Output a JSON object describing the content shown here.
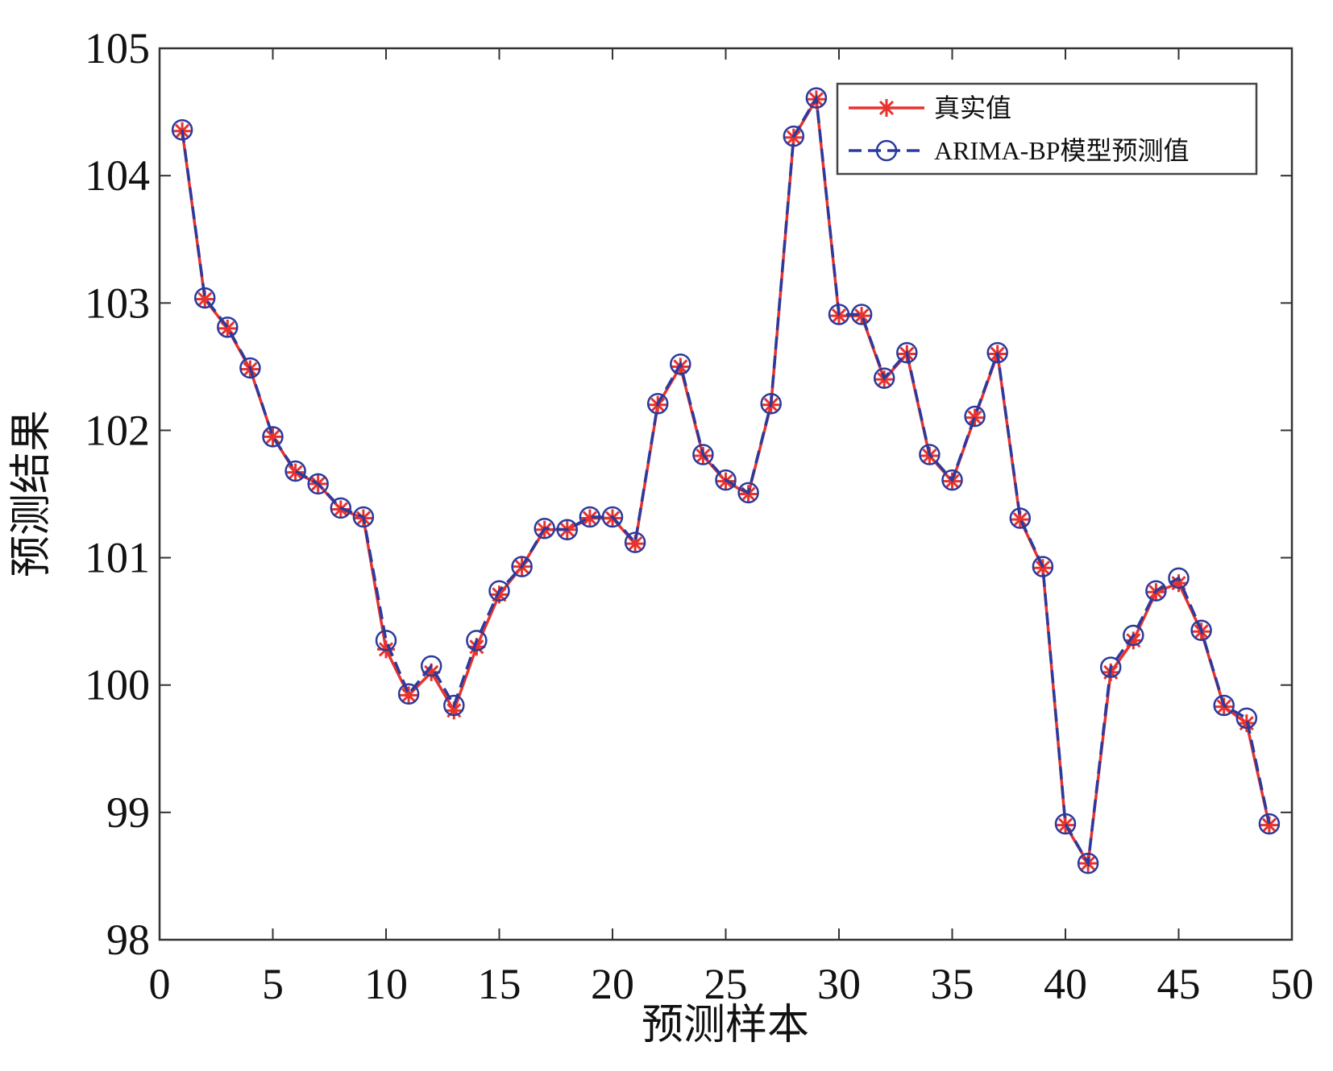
{
  "chart_data": {
    "type": "line",
    "xlabel": "预测样本",
    "ylabel": "预测结果",
    "x": [
      1,
      2,
      3,
      4,
      5,
      6,
      7,
      8,
      9,
      10,
      11,
      12,
      13,
      14,
      15,
      16,
      17,
      18,
      19,
      20,
      21,
      22,
      23,
      24,
      25,
      26,
      27,
      28,
      29,
      30,
      31,
      32,
      33,
      34,
      35,
      36,
      37,
      38,
      39,
      40,
      41,
      42,
      43,
      44,
      45,
      46,
      47,
      48,
      49
    ],
    "series": [
      {
        "name": "真实值",
        "color": "#e8322d",
        "marker": "asterisk",
        "dash": false,
        "values": [
          104.35,
          103.03,
          102.8,
          102.48,
          101.95,
          101.67,
          101.58,
          101.38,
          101.31,
          100.28,
          99.92,
          100.1,
          99.8,
          100.3,
          100.71,
          100.93,
          101.22,
          101.22,
          101.31,
          101.31,
          101.11,
          102.2,
          102.5,
          101.8,
          101.6,
          101.5,
          102.2,
          104.3,
          104.6,
          102.9,
          102.9,
          102.4,
          102.6,
          101.8,
          101.6,
          102.1,
          102.6,
          101.3,
          100.92,
          98.9,
          98.6,
          100.1,
          100.35,
          100.73,
          100.8,
          100.42,
          99.83,
          99.7,
          98.9
        ]
      },
      {
        "name": "ARIMA-BP模型预测值",
        "color": "#2b3a9c",
        "marker": "circle",
        "dash": true,
        "values": [
          104.36,
          103.04,
          102.81,
          102.49,
          101.95,
          101.68,
          101.58,
          101.39,
          101.32,
          100.35,
          99.93,
          100.15,
          99.84,
          100.35,
          100.74,
          100.93,
          101.23,
          101.22,
          101.32,
          101.32,
          101.12,
          102.21,
          102.52,
          101.81,
          101.61,
          101.51,
          102.21,
          104.31,
          104.61,
          102.91,
          102.91,
          102.41,
          102.61,
          101.81,
          101.61,
          102.11,
          102.61,
          101.31,
          100.93,
          98.91,
          98.6,
          100.14,
          100.39,
          100.74,
          100.84,
          100.43,
          99.84,
          99.74,
          98.91
        ]
      }
    ],
    "xlim": [
      0,
      50
    ],
    "xticks": [
      0,
      5,
      10,
      15,
      20,
      25,
      30,
      35,
      40,
      45,
      50
    ],
    "ylim": [
      98,
      105
    ],
    "yticks": [
      98,
      99,
      100,
      101,
      102,
      103,
      104,
      105
    ],
    "grid": false,
    "legend": "upper right"
  }
}
